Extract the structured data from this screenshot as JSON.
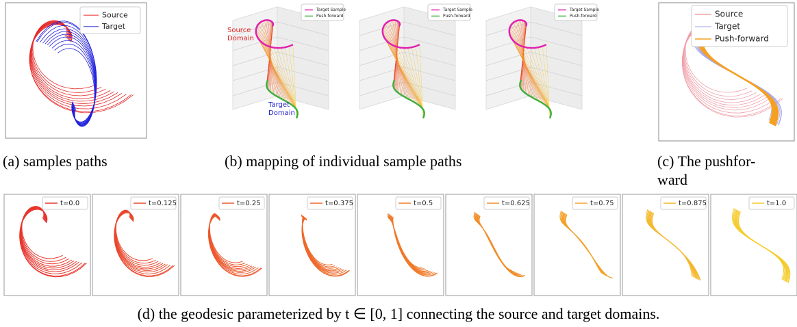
{
  "panel_a": {
    "legend": [
      "Source",
      "Target"
    ],
    "caption": "(a) samples paths"
  },
  "panel_b": {
    "plots": [
      {
        "legend": [
          "Target Sample",
          "Push-forward"
        ],
        "source_label": [
          "Source",
          "Domain"
        ],
        "target_label": [
          "Target",
          "Domain"
        ]
      },
      {
        "legend": [
          "Target Sample",
          "Push-forward"
        ]
      },
      {
        "legend": [
          "Target Sample",
          "Push-forward"
        ]
      }
    ],
    "caption": "(b) mapping of individual sample paths"
  },
  "panel_c": {
    "legend": [
      "Source",
      "Target",
      "Push-forward"
    ],
    "caption": [
      "(c) The pushfor-",
      "ward"
    ]
  },
  "panel_d": {
    "frames": [
      "t=0.0",
      "t=0.125",
      "t=0.25",
      "t=0.375",
      "t=0.5",
      "t=0.625",
      "t=0.75",
      "t=0.875",
      "t=1.0"
    ],
    "caption": "(d) the geodesic parameterized by t ∈ [0, 1] connecting the source and target domains."
  }
}
